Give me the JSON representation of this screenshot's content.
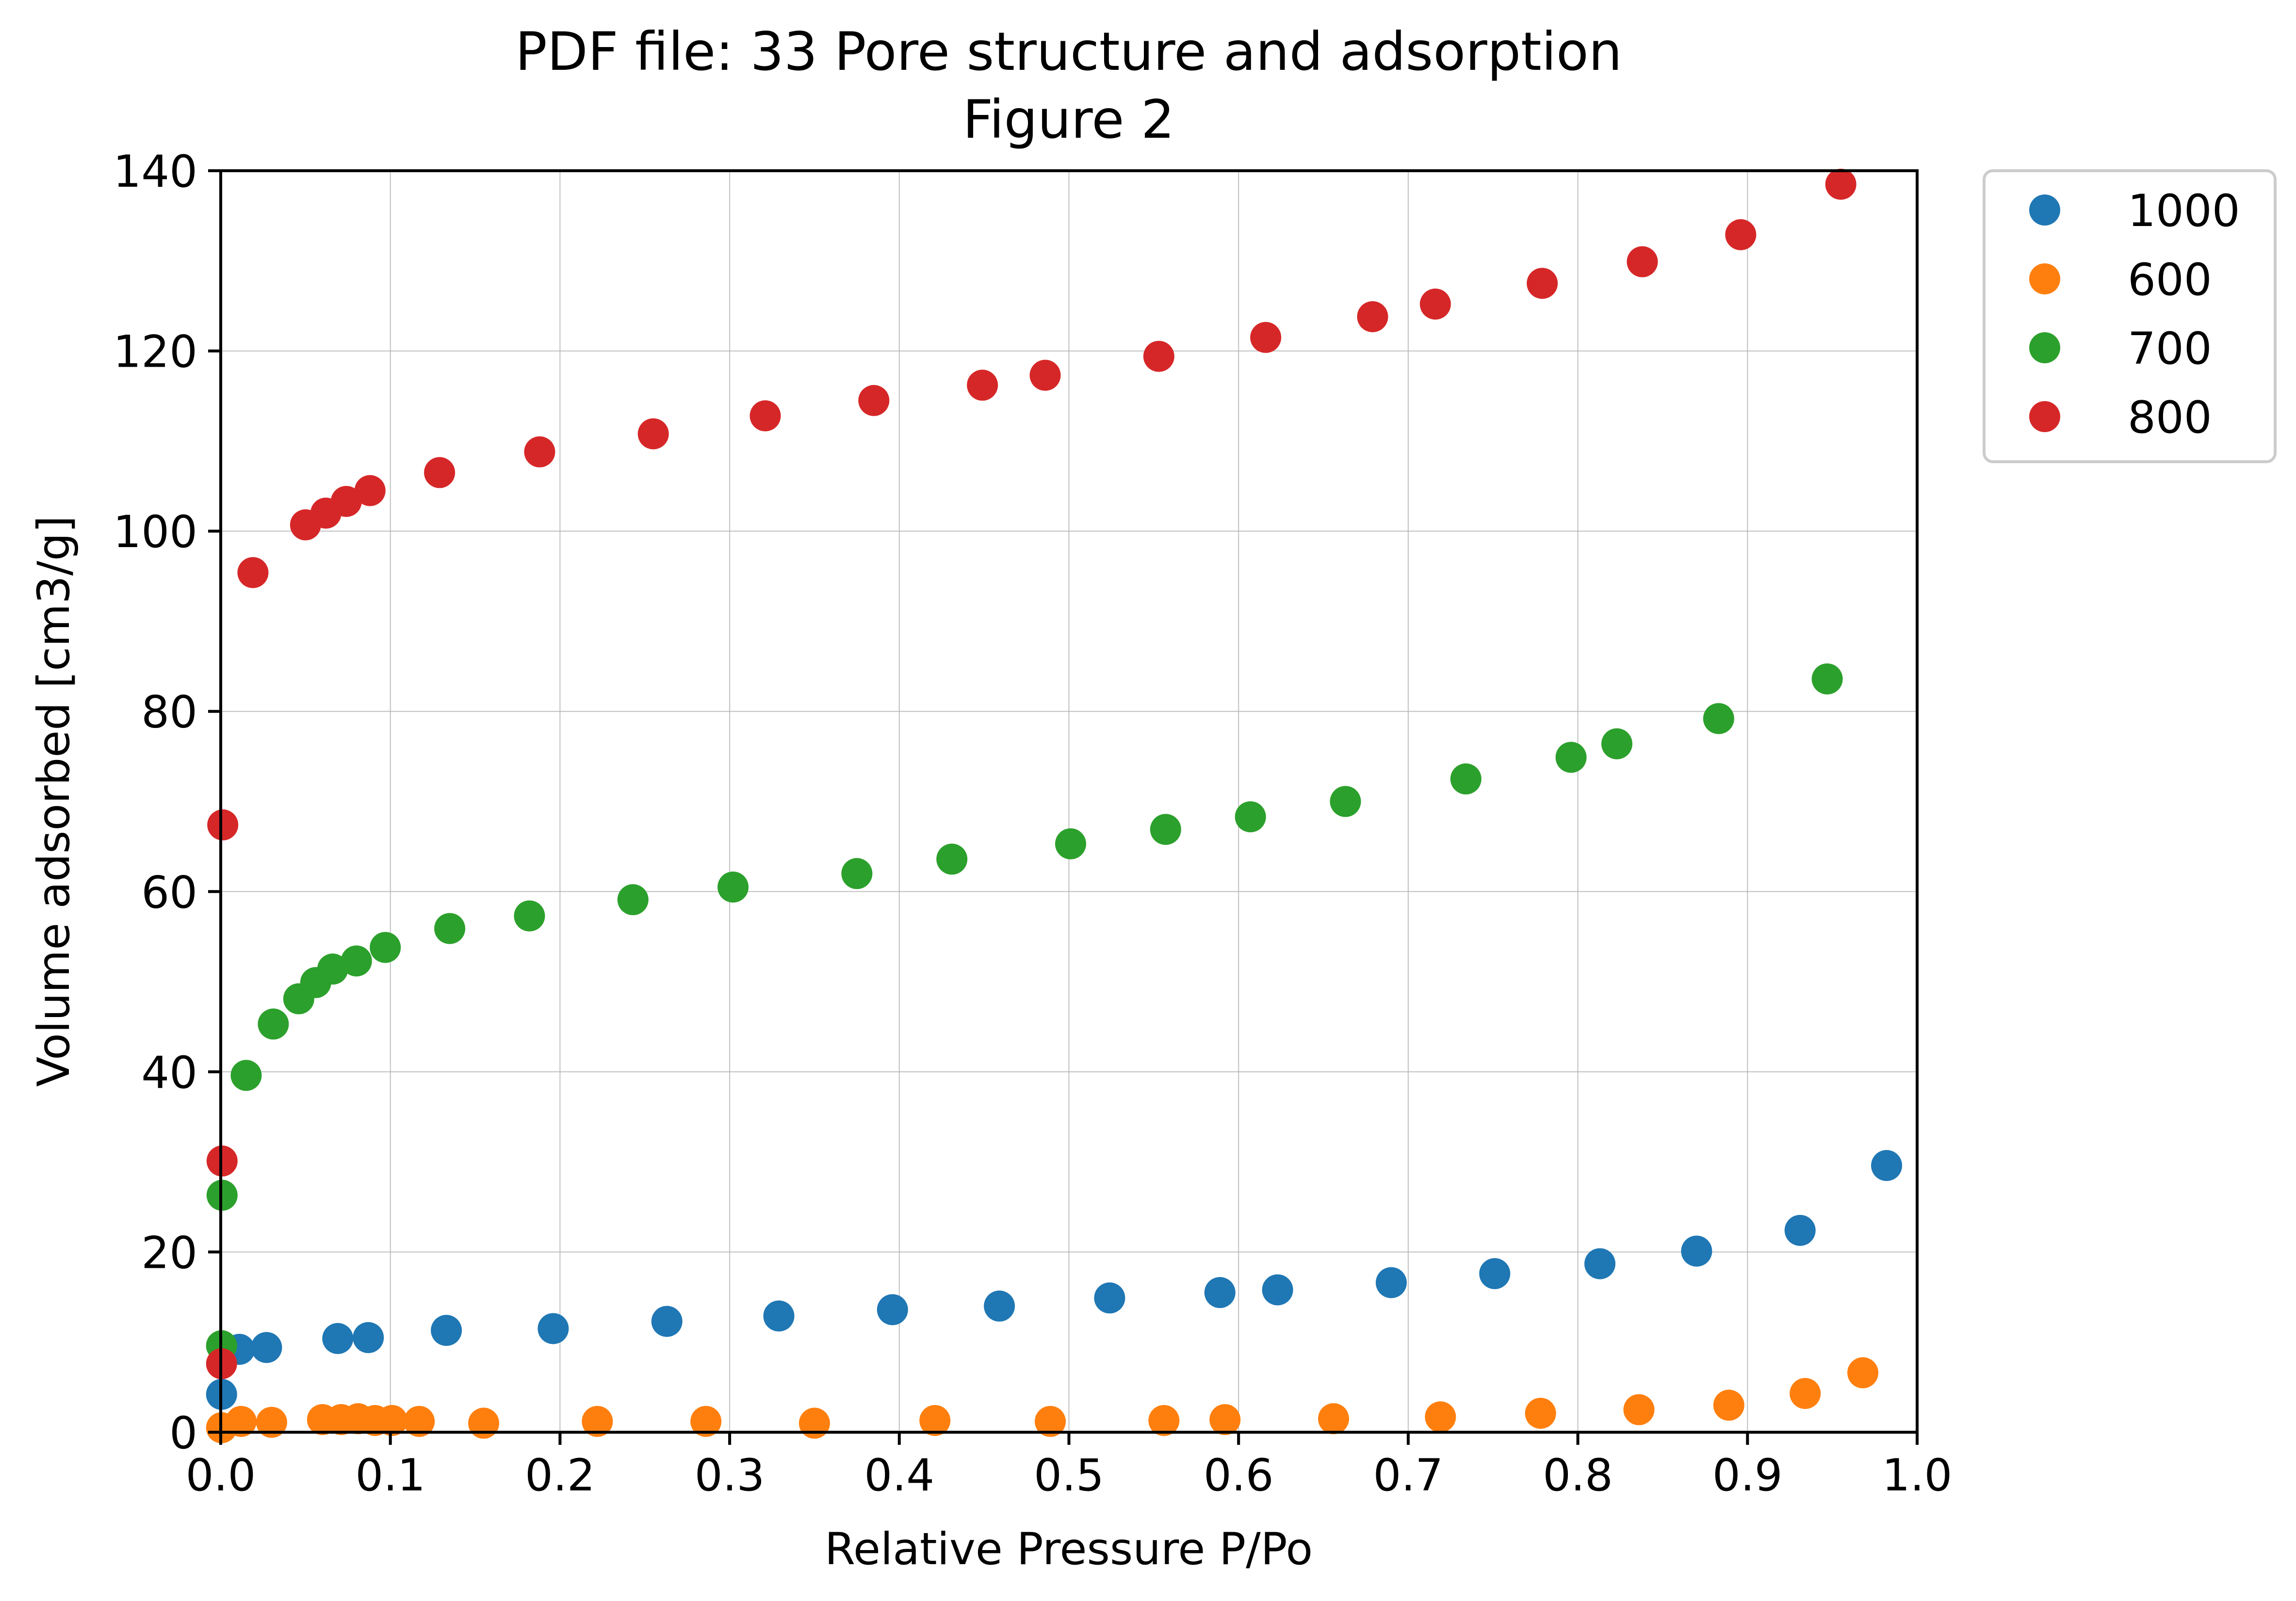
{
  "chart_data": {
    "type": "scatter",
    "title": "PDF file: 33 Pore structure and adsorption",
    "subtitle": "Figure 2",
    "xlabel": "Relative Pressure P/Po",
    "ylabel": "Volume adsorbed [cm3/g]",
    "xlim": [
      0.0,
      1.0
    ],
    "ylim": [
      0,
      140
    ],
    "xticks": [
      "0.0",
      "0.1",
      "0.2",
      "0.3",
      "0.4",
      "0.5",
      "0.6",
      "0.7",
      "0.8",
      "0.9",
      "1.0"
    ],
    "yticks": [
      "0",
      "20",
      "40",
      "60",
      "80",
      "100",
      "120",
      "140"
    ],
    "grid": true,
    "legend_position": "outside-top-right",
    "series": [
      {
        "name": "1000",
        "color": "#1f77b4",
        "x": [
          0.0005,
          0.011,
          0.027,
          0.069,
          0.087,
          0.133,
          0.196,
          0.263,
          0.329,
          0.396,
          0.459,
          0.524,
          0.589,
          0.623,
          0.69,
          0.751,
          0.813,
          0.87,
          0.931,
          0.982
        ],
        "y": [
          4.2,
          9.2,
          9.4,
          10.4,
          10.5,
          11.3,
          11.5,
          12.3,
          12.9,
          13.6,
          14.0,
          14.9,
          15.5,
          15.8,
          16.6,
          17.6,
          18.7,
          20.1,
          22.4,
          29.6
        ]
      },
      {
        "name": "600",
        "color": "#ff7f0e",
        "x": [
          0.0005,
          0.012,
          0.03,
          0.06,
          0.071,
          0.081,
          0.091,
          0.101,
          0.117,
          0.155,
          0.222,
          0.286,
          0.35,
          0.421,
          0.489,
          0.556,
          0.592,
          0.656,
          0.719,
          0.778,
          0.836,
          0.889,
          0.934,
          0.968
        ],
        "y": [
          0.5,
          1.2,
          1.1,
          1.4,
          1.4,
          1.5,
          1.3,
          1.3,
          1.2,
          1.0,
          1.2,
          1.2,
          1.0,
          1.3,
          1.2,
          1.3,
          1.4,
          1.5,
          1.7,
          2.1,
          2.5,
          3.0,
          4.3,
          6.6
        ]
      },
      {
        "name": "700",
        "color": "#2ca02c",
        "x": [
          0.0005,
          0.0008,
          0.015,
          0.031,
          0.046,
          0.056,
          0.066,
          0.08,
          0.097,
          0.135,
          0.182,
          0.243,
          0.302,
          0.375,
          0.431,
          0.501,
          0.557,
          0.607,
          0.663,
          0.734,
          0.796,
          0.823,
          0.883,
          0.947
        ],
        "y": [
          9.6,
          26.3,
          39.6,
          45.3,
          48.1,
          49.9,
          51.4,
          52.3,
          53.8,
          55.9,
          57.3,
          59.1,
          60.5,
          62.0,
          63.6,
          65.3,
          66.9,
          68.3,
          70.0,
          72.5,
          74.9,
          76.4,
          79.2,
          83.6
        ]
      },
      {
        "name": "800",
        "color": "#d62728",
        "x": [
          0.0005,
          0.0008,
          0.0012,
          0.019,
          0.05,
          0.062,
          0.074,
          0.088,
          0.129,
          0.188,
          0.255,
          0.321,
          0.385,
          0.449,
          0.486,
          0.553,
          0.616,
          0.679,
          0.716,
          0.779,
          0.838,
          0.896,
          0.955
        ],
        "y": [
          7.6,
          30.1,
          67.4,
          95.4,
          100.7,
          102.0,
          103.3,
          104.5,
          106.5,
          108.8,
          110.8,
          112.8,
          114.5,
          116.2,
          117.3,
          119.4,
          121.5,
          123.8,
          125.2,
          127.5,
          129.9,
          132.9,
          138.5
        ]
      }
    ]
  }
}
